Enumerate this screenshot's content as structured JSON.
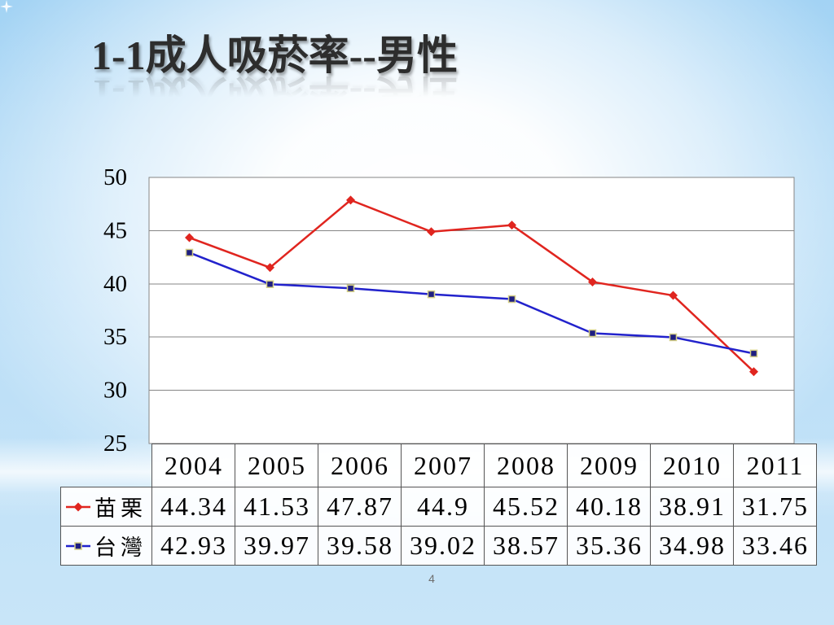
{
  "slide": {
    "title": "1-1成人吸菸率--男性",
    "page_number": "4"
  },
  "chart_data": {
    "type": "line",
    "categories": [
      "2004",
      "2005",
      "2006",
      "2007",
      "2008",
      "2009",
      "2010",
      "2011"
    ],
    "series": [
      {
        "name": "苗栗",
        "values": [
          44.34,
          41.53,
          47.87,
          44.9,
          45.52,
          40.18,
          38.91,
          31.75
        ],
        "color": "#e0251f",
        "marker": "diamond",
        "marker_color": "#e0251f"
      },
      {
        "name": "台灣",
        "values": [
          42.93,
          39.97,
          39.58,
          39.02,
          38.57,
          35.36,
          34.98,
          33.46
        ],
        "color": "#2222cc",
        "marker": "square",
        "marker_color": "#1e1e80"
      }
    ],
    "y_ticks": [
      50,
      45,
      40,
      35,
      30,
      25
    ],
    "ylim": [
      25,
      50
    ],
    "grid": true,
    "legend": "data-table"
  }
}
